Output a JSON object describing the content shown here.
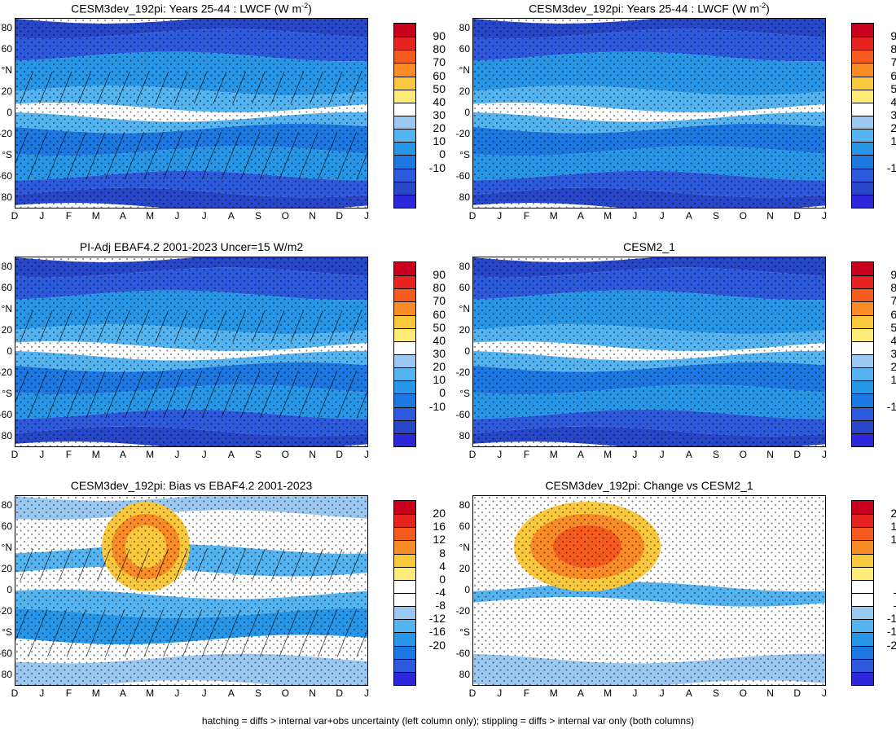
{
  "months": [
    "D",
    "J",
    "F",
    "M",
    "A",
    "M",
    "J",
    "J",
    "A",
    "S",
    "O",
    "N",
    "D",
    "J"
  ],
  "lat_ticks": [
    "80",
    "60",
    "°N",
    "20",
    "0",
    "-20",
    "°S",
    "-60",
    "80"
  ],
  "colorbars": {
    "abs": {
      "labels": [
        "90",
        "80",
        "70",
        "60",
        "50",
        "40",
        "30",
        "20",
        "10",
        "0",
        "-10"
      ],
      "colors": [
        "#c8001e",
        "#e6231e",
        "#f55a1e",
        "#fa8c28",
        "#fac83c",
        "#ffeb78",
        "#ffffff",
        "#9ac8f0",
        "#55b4f0",
        "#2896e6",
        "#1e78e1",
        "#2d5adc",
        "#2846c8",
        "#2d28dc"
      ]
    },
    "diff": {
      "labels": [
        "20",
        "16",
        "12",
        "8",
        "4",
        "0",
        "-4",
        "-8",
        "-12",
        "-16",
        "-20"
      ],
      "colors": [
        "#c8001e",
        "#e6231e",
        "#f55a1e",
        "#fa8c28",
        "#fac83c",
        "#ffeb78",
        "#ffffff",
        "#ffffff",
        "#9ac8f0",
        "#55b4f0",
        "#2896e6",
        "#1e78e1",
        "#2d5adc",
        "#2d28dc"
      ]
    }
  },
  "panels": [
    {
      "title": "CESM3dev_192pi: Years 25-44 : LWCF (W m",
      "title_sup": "-2",
      "title_tail": ")",
      "kind": "abs",
      "hatch": true
    },
    {
      "title": "CESM3dev_192pi: Years 25-44 : LWCF (W m",
      "title_sup": "-2",
      "title_tail": ")",
      "kind": "abs",
      "hatch": false
    },
    {
      "title": "PI-Adj EBAF4.2 2001-2023 Uncer=15 W/m2",
      "title_sup": "",
      "title_tail": "",
      "kind": "abs",
      "hatch": true
    },
    {
      "title": "CESM2_1",
      "title_sup": "",
      "title_tail": "",
      "kind": "abs",
      "hatch": false
    },
    {
      "title": "CESM3dev_192pi: Bias vs EBAF4.2 2001-2023",
      "title_sup": "",
      "title_tail": "",
      "kind": "diff",
      "hatch": true
    },
    {
      "title": "CESM3dev_192pi: Change vs CESM2_1",
      "title_sup": "",
      "title_tail": "",
      "kind": "diff",
      "hatch": false
    }
  ],
  "footer": "hatching = diffs > internal var+obs uncertainty (left column only); stippling = diffs > internal var only (both columns)"
}
